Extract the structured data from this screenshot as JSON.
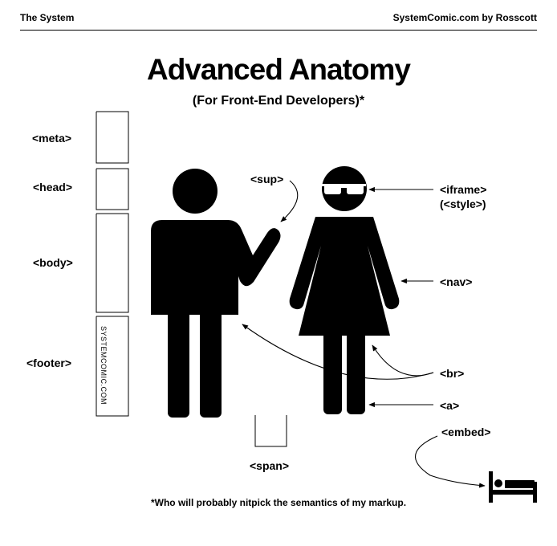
{
  "header": {
    "left": "The System",
    "right": "SystemComic.com by Rosscott"
  },
  "title": "Advanced Anatomy",
  "subtitle": "(For Front-End Developers)*",
  "labels": {
    "meta": "<meta>",
    "head": "<head>",
    "body": "<body>",
    "footer": "<footer>",
    "sup": "<sup>",
    "iframe": "<iframe>",
    "style": "(<style>)",
    "nav": "<nav>",
    "br": "<br>",
    "a": "<a>",
    "embed": "<embed>",
    "span": "<span>"
  },
  "footer_watermark": "SYSTEMCOMIC.COM",
  "footnote": "*Who will probably nitpick the semantics of my markup.",
  "icons": [
    "man-figure-icon",
    "woman-figure-icon",
    "sunglasses-icon",
    "bed-icon"
  ]
}
